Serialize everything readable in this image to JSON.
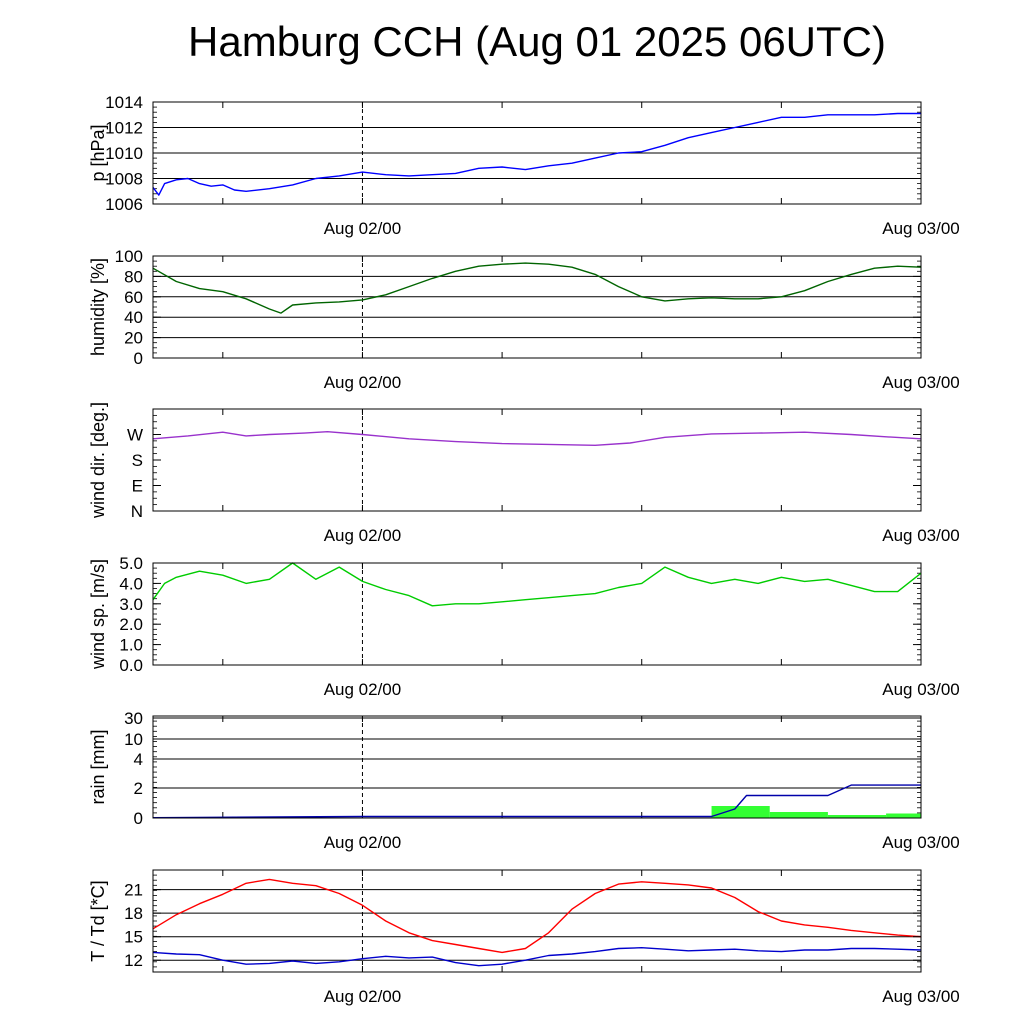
{
  "title": "Hamburg CCH (Aug 01 2025 06UTC)",
  "chart_data": [
    {
      "type": "line",
      "ylabel": "p [hPa]",
      "ylim": [
        1006,
        1014
      ],
      "yticks": [
        "1006",
        "1008",
        "1010",
        "1012",
        "1014"
      ],
      "xlim": [
        -18,
        48
      ],
      "xticks": [
        "Aug 02/00",
        "Aug 03/00"
      ],
      "grid": true,
      "series": [
        {
          "color": "#0000ff",
          "x": [
            -18,
            -17.5,
            -17,
            -16,
            -15,
            -14,
            -13,
            -12,
            -11,
            -10,
            -8,
            -6,
            -4,
            -2,
            0,
            2,
            4,
            6,
            8,
            10,
            12,
            14,
            16,
            18,
            20,
            22,
            24,
            26,
            28,
            30,
            32,
            34,
            36,
            38,
            40,
            42,
            44,
            46,
            48
          ],
          "y": [
            1007.3,
            1006.7,
            1007.6,
            1007.9,
            1008.0,
            1007.6,
            1007.4,
            1007.5,
            1007.1,
            1007.0,
            1007.2,
            1007.5,
            1008.0,
            1008.2,
            1008.5,
            1008.3,
            1008.2,
            1008.3,
            1008.4,
            1008.8,
            1008.9,
            1008.7,
            1009.0,
            1009.2,
            1009.6,
            1010.0,
            1010.1,
            1010.6,
            1011.2,
            1011.6,
            1012.0,
            1012.4,
            1012.8,
            1012.8,
            1013.0,
            1013.0,
            1013.0,
            1013.1,
            1013.1
          ]
        }
      ]
    },
    {
      "type": "line",
      "ylabel": "humidity [%]",
      "ylim": [
        0,
        100
      ],
      "yticks": [
        "0",
        "20",
        "40",
        "60",
        "80",
        "100"
      ],
      "xlim": [
        -18,
        48
      ],
      "xticks": [
        "Aug 02/00",
        "Aug 03/00"
      ],
      "grid": true,
      "series": [
        {
          "color": "#006400",
          "x": [
            -18,
            -16,
            -14,
            -12,
            -10,
            -8,
            -7,
            -6,
            -4,
            -2,
            0,
            2,
            4,
            6,
            8,
            10,
            12,
            14,
            16,
            18,
            20,
            22,
            24,
            26,
            28,
            30,
            32,
            34,
            36,
            38,
            40,
            42,
            44,
            46,
            48
          ],
          "y": [
            88,
            75,
            68,
            65,
            58,
            48,
            44,
            52,
            54,
            55,
            57,
            62,
            70,
            78,
            85,
            90,
            92,
            93,
            92,
            89,
            82,
            70,
            60,
            56,
            58,
            59,
            58,
            58,
            60,
            66,
            75,
            82,
            88,
            90,
            89
          ]
        }
      ]
    },
    {
      "type": "line",
      "ylabel": "wind dir. [deg.]",
      "ylim": [
        0,
        360
      ],
      "yticks": [
        "N",
        "E",
        "S",
        "W"
      ],
      "xlim": [
        -18,
        48
      ],
      "xticks": [
        "Aug 02/00",
        "Aug 03/00"
      ],
      "grid": false,
      "series": [
        {
          "color": "#9932cc",
          "x": [
            -18,
            -15,
            -12,
            -10,
            -8,
            -5,
            -3,
            0,
            4,
            8,
            12,
            16,
            20,
            23,
            26,
            30,
            34,
            38,
            42,
            45,
            48
          ],
          "y": [
            255,
            265,
            278,
            265,
            270,
            275,
            280,
            270,
            255,
            245,
            238,
            235,
            232,
            240,
            260,
            272,
            275,
            278,
            270,
            262,
            255
          ]
        }
      ]
    },
    {
      "type": "line",
      "ylabel": "wind sp. [m/s]",
      "ylim": [
        0,
        5
      ],
      "yticks": [
        "0.0",
        "1.0",
        "2.0",
        "3.0",
        "4.0",
        "5.0"
      ],
      "xlim": [
        -18,
        48
      ],
      "xticks": [
        "Aug 02/00",
        "Aug 03/00"
      ],
      "grid": false,
      "series": [
        {
          "color": "#00cc00",
          "x": [
            -18,
            -17,
            -16,
            -14,
            -12,
            -10,
            -8,
            -6,
            -4,
            -2,
            0,
            2,
            4,
            6,
            8,
            10,
            12,
            14,
            16,
            18,
            20,
            22,
            24,
            26,
            28,
            30,
            32,
            34,
            36,
            38,
            40,
            42,
            44,
            46,
            48
          ],
          "y": [
            3.2,
            4.0,
            4.3,
            4.6,
            4.4,
            4.0,
            4.2,
            5.0,
            4.2,
            4.8,
            4.1,
            3.7,
            3.4,
            2.9,
            3.0,
            3.0,
            3.1,
            3.2,
            3.3,
            3.4,
            3.5,
            3.8,
            4.0,
            4.8,
            4.3,
            4.0,
            4.2,
            4.0,
            4.3,
            4.1,
            4.2,
            3.9,
            3.6,
            3.6,
            4.5
          ]
        }
      ]
    },
    {
      "type": "bar",
      "ylabel": "rain [mm]",
      "ylim": [
        0,
        30
      ],
      "yscale": "nonlinear",
      "yticks": [
        "0",
        "2",
        "4",
        "10",
        "30"
      ],
      "ytick_values": [
        0,
        2,
        4,
        10,
        30
      ],
      "xlim": [
        -18,
        48
      ],
      "xticks": [
        "Aug 02/00",
        "Aug 03/00"
      ],
      "grid": true,
      "bar_color": "#33ff33",
      "bars": [
        {
          "x0": 30,
          "x1": 35,
          "value": 0.8
        },
        {
          "x0": 35,
          "x1": 40,
          "value": 0.4
        },
        {
          "x0": 40,
          "x1": 45,
          "value": 0.2
        },
        {
          "x0": 45,
          "x1": 48,
          "value": 0.3
        }
      ],
      "series": [
        {
          "color": "#0000aa",
          "x": [
            -18,
            0,
            30,
            32,
            33,
            40,
            42,
            48
          ],
          "y": [
            0.02,
            0.1,
            0.1,
            0.6,
            1.5,
            1.5,
            2.2,
            2.2
          ]
        }
      ]
    },
    {
      "type": "line",
      "ylabel": "T / Td [*C]",
      "ylim": [
        10.5,
        23.5
      ],
      "yticks": [
        "12",
        "15",
        "18",
        "21"
      ],
      "xlim": [
        -18,
        48
      ],
      "xticks": [
        "Aug 02/00",
        "Aug 03/00"
      ],
      "grid": true,
      "series": [
        {
          "color": "#ff0000",
          "x": [
            -18,
            -16,
            -14,
            -12,
            -10,
            -8,
            -6,
            -4,
            -2,
            0,
            2,
            4,
            6,
            8,
            10,
            12,
            14,
            16,
            18,
            20,
            22,
            24,
            26,
            28,
            30,
            32,
            34,
            36,
            38,
            40,
            42,
            44,
            46,
            48
          ],
          "y": [
            16.0,
            17.8,
            19.2,
            20.4,
            21.8,
            22.3,
            21.8,
            21.5,
            20.5,
            19.0,
            17.0,
            15.5,
            14.5,
            14.0,
            13.5,
            13.0,
            13.5,
            15.5,
            18.5,
            20.5,
            21.7,
            22.0,
            21.8,
            21.6,
            21.2,
            20.0,
            18.2,
            17.0,
            16.5,
            16.2,
            15.8,
            15.5,
            15.2,
            15.0
          ]
        },
        {
          "color": "#0000cc",
          "x": [
            -18,
            -16,
            -14,
            -12,
            -10,
            -8,
            -6,
            -4,
            -2,
            0,
            2,
            4,
            6,
            8,
            10,
            12,
            14,
            16,
            18,
            20,
            22,
            24,
            26,
            28,
            30,
            32,
            34,
            36,
            38,
            40,
            42,
            44,
            46,
            48
          ],
          "y": [
            13.0,
            12.8,
            12.7,
            12.0,
            11.5,
            11.6,
            11.9,
            11.6,
            11.8,
            12.2,
            12.5,
            12.3,
            12.4,
            11.7,
            11.3,
            11.5,
            12.0,
            12.6,
            12.8,
            13.1,
            13.5,
            13.6,
            13.4,
            13.2,
            13.3,
            13.4,
            13.2,
            13.1,
            13.3,
            13.3,
            13.5,
            13.5,
            13.4,
            13.3
          ]
        }
      ]
    }
  ]
}
